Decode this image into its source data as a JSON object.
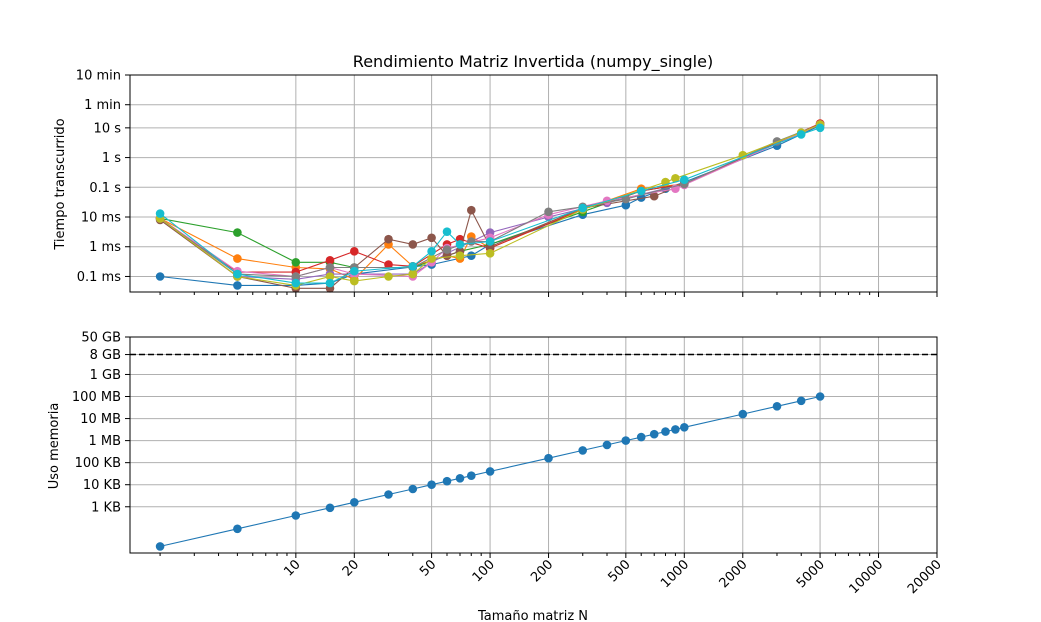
{
  "chart_data": [
    {
      "type": "line",
      "title": "Rendimiento Matriz Invertida (numpy_single)",
      "xlabel": "",
      "ylabel": "Tiempo transcurrido",
      "x_scale": "log",
      "y_scale": "log",
      "y_unit": "seconds",
      "xlim": [
        1.4,
        20000
      ],
      "ylim": [
        3e-05,
        600
      ],
      "grid": true,
      "x_ticks": [
        10,
        20,
        50,
        100,
        200,
        500,
        1000,
        2000,
        5000,
        10000,
        20000
      ],
      "y_ticks": [
        {
          "value": 0.0001,
          "label": "0.1 ms"
        },
        {
          "value": 0.001,
          "label": "1 ms"
        },
        {
          "value": 0.01,
          "label": "10 ms"
        },
        {
          "value": 0.1,
          "label": "0.1 s"
        },
        {
          "value": 1,
          "label": "1 s"
        },
        {
          "value": 10,
          "label": "10 s"
        },
        {
          "value": 60,
          "label": "1 min"
        },
        {
          "value": 600,
          "label": "10 min"
        }
      ],
      "series": [
        {
          "color": "#1f77b4",
          "x": [
            2,
            5,
            10,
            15,
            20,
            50,
            80,
            100,
            300,
            500,
            600,
            800,
            1000,
            3000,
            5000
          ],
          "y": [
            0.0001,
            5e-05,
            5e-05,
            6e-05,
            0.00012,
            0.00025,
            0.0005,
            0.0012,
            0.012,
            0.025,
            0.045,
            0.09,
            0.15,
            2.5,
            12
          ]
        },
        {
          "color": "#ff7f0e",
          "x": [
            2,
            5,
            10,
            15,
            20,
            30,
            40,
            60,
            70,
            80,
            100,
            300,
            600,
            1000,
            5000
          ],
          "y": [
            0.009,
            0.0004,
            0.0002,
            0.00018,
            8e-05,
            0.0012,
            0.00022,
            0.0005,
            0.0004,
            0.0022,
            0.0009,
            0.018,
            0.09,
            0.13,
            14
          ]
        },
        {
          "color": "#2ca02c",
          "x": [
            2,
            5,
            10,
            15,
            20,
            40,
            70,
            100,
            300,
            600,
            1000,
            5000
          ],
          "y": [
            0.009,
            0.003,
            0.0003,
            0.0003,
            0.0002,
            0.0002,
            0.0007,
            0.0012,
            0.015,
            0.075,
            0.13,
            13
          ]
        },
        {
          "color": "#d62728",
          "x": [
            2,
            5,
            10,
            15,
            20,
            30,
            40,
            60,
            70,
            100,
            300,
            600,
            1000,
            5000
          ],
          "y": [
            0.009,
            0.00014,
            0.00014,
            0.00035,
            0.0007,
            0.00025,
            0.00022,
            0.0012,
            0.0018,
            0.0009,
            0.018,
            0.075,
            0.13,
            14
          ]
        },
        {
          "color": "#9467bd",
          "x": [
            2,
            5,
            10,
            15,
            20,
            40,
            60,
            100,
            200,
            400,
            1000,
            5000
          ],
          "y": [
            0.009,
            0.0001,
            8e-05,
            0.00012,
            0.00012,
            0.00012,
            0.0006,
            0.003,
            0.01,
            0.03,
            0.13,
            13
          ]
        },
        {
          "color": "#8c564b",
          "x": [
            2,
            5,
            10,
            15,
            20,
            30,
            40,
            50,
            60,
            70,
            80,
            100,
            300,
            700,
            1000,
            5000
          ],
          "y": [
            0.008,
            0.0001,
            4e-05,
            4e-05,
            0.0002,
            0.0018,
            0.0012,
            0.002,
            0.0005,
            0.0007,
            0.017,
            0.001,
            0.02,
            0.05,
            0.13,
            13
          ]
        },
        {
          "color": "#e377c2",
          "x": [
            2,
            5,
            10,
            15,
            20,
            40,
            50,
            60,
            100,
            200,
            400,
            900,
            1000,
            5000
          ],
          "y": [
            0.009,
            0.00015,
            0.0001,
            0.0002,
            0.00012,
            0.0001,
            0.0003,
            0.0009,
            0.002,
            0.012,
            0.035,
            0.09,
            0.12,
            13
          ]
        },
        {
          "color": "#7f7f7f",
          "x": [
            2,
            5,
            10,
            15,
            20,
            40,
            60,
            80,
            100,
            200,
            300,
            500,
            1000,
            3000,
            5000
          ],
          "y": [
            0.009,
            0.00012,
            0.0001,
            0.0002,
            0.0002,
            0.0002,
            0.0008,
            0.0015,
            0.0015,
            0.015,
            0.022,
            0.04,
            0.13,
            3.5,
            13
          ]
        },
        {
          "color": "#bcbd22",
          "x": [
            2,
            5,
            10,
            15,
            20,
            30,
            40,
            50,
            70,
            100,
            300,
            800,
            900,
            2000,
            4000,
            5000
          ],
          "y": [
            0.009,
            0.0001,
            5e-05,
            0.0001,
            7e-05,
            0.0001,
            0.00012,
            0.0004,
            0.0005,
            0.0006,
            0.018,
            0.15,
            0.2,
            1.2,
            7,
            13
          ]
        },
        {
          "color": "#17becf",
          "x": [
            2,
            5,
            10,
            15,
            20,
            40,
            50,
            60,
            70,
            100,
            300,
            600,
            1000,
            4000,
            5000
          ],
          "y": [
            0.013,
            0.00012,
            6e-05,
            6e-05,
            0.00015,
            0.00022,
            0.0007,
            0.0032,
            0.0012,
            0.0015,
            0.02,
            0.075,
            0.18,
            6,
            10
          ]
        }
      ]
    },
    {
      "type": "line",
      "title": "",
      "xlabel": "Tamaño matriz N",
      "ylabel": "Uso memoria",
      "x_scale": "log",
      "y_scale": "log",
      "y_unit": "bytes",
      "xlim": [
        1.4,
        20000
      ],
      "ylim": [
        8,
        50000000000.0
      ],
      "grid": true,
      "x_ticks": [
        10,
        20,
        50,
        100,
        200,
        500,
        1000,
        2000,
        5000,
        10000,
        20000
      ],
      "y_ticks": [
        {
          "value": 1000.0,
          "label": "1 KB"
        },
        {
          "value": 10000.0,
          "label": "10 KB"
        },
        {
          "value": 100000.0,
          "label": "100 KB"
        },
        {
          "value": 1000000.0,
          "label": "1 MB"
        },
        {
          "value": 10000000.0,
          "label": "10 MB"
        },
        {
          "value": 100000000.0,
          "label": "100 MB"
        },
        {
          "value": 1000000000.0,
          "label": "1 GB"
        },
        {
          "value": 8000000000.0,
          "label": "8 GB"
        },
        {
          "value": 50000000000.0,
          "label": "50 GB"
        }
      ],
      "reference_line": {
        "value": 8000000000.0,
        "style": "dashed",
        "color": "#000000"
      },
      "series": [
        {
          "color": "#1f77b4",
          "x": [
            2,
            5,
            10,
            15,
            20,
            30,
            40,
            50,
            60,
            70,
            80,
            100,
            200,
            300,
            400,
            500,
            600,
            700,
            800,
            900,
            1000,
            2000,
            3000,
            4000,
            5000
          ],
          "y": [
            16,
            100,
            400,
            900,
            1600,
            3600,
            6400,
            10000,
            14400,
            19600,
            25600,
            40000,
            160000,
            360000,
            640000,
            1000000,
            1440000,
            1960000,
            2560000,
            3240000,
            4000000,
            16000000,
            36000000,
            64000000,
            100000000
          ]
        }
      ]
    }
  ]
}
